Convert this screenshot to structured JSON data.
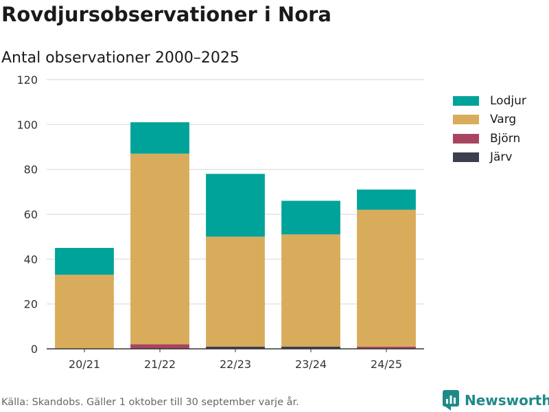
{
  "title": "Rovdjursobservationer i Nora",
  "subtitle": "Antal observationer 2000–2025",
  "footer": "Källa: Skandobs. Gäller 1 oktober till 30 september varje år.",
  "brand": "Newsworthy",
  "colors": {
    "Lodjur": "#00a39a",
    "Varg": "#d9ac5b",
    "Björn": "#a8445f",
    "Järv": "#3c3f4e"
  },
  "chart_data": {
    "type": "bar",
    "stacked": true,
    "title": "Rovdjursobservationer i Nora",
    "subtitle": "Antal observationer 2000–2025",
    "xlabel": "",
    "ylabel": "",
    "ylim": [
      0,
      120
    ],
    "yticks": [
      0,
      20,
      40,
      60,
      80,
      100,
      120
    ],
    "grid": true,
    "legend_position": "right",
    "categories": [
      "20/21",
      "21/22",
      "22/23",
      "23/24",
      "24/25"
    ],
    "series": [
      {
        "name": "Järv",
        "values": [
          0,
          0,
          1,
          1,
          0
        ]
      },
      {
        "name": "Björn",
        "values": [
          0,
          2,
          0,
          0,
          1
        ]
      },
      {
        "name": "Varg",
        "values": [
          33,
          85,
          49,
          50,
          61
        ]
      },
      {
        "name": "Lodjur",
        "values": [
          12,
          14,
          28,
          15,
          9
        ]
      }
    ],
    "legend": [
      "Lodjur",
      "Varg",
      "Björn",
      "Järv"
    ]
  }
}
